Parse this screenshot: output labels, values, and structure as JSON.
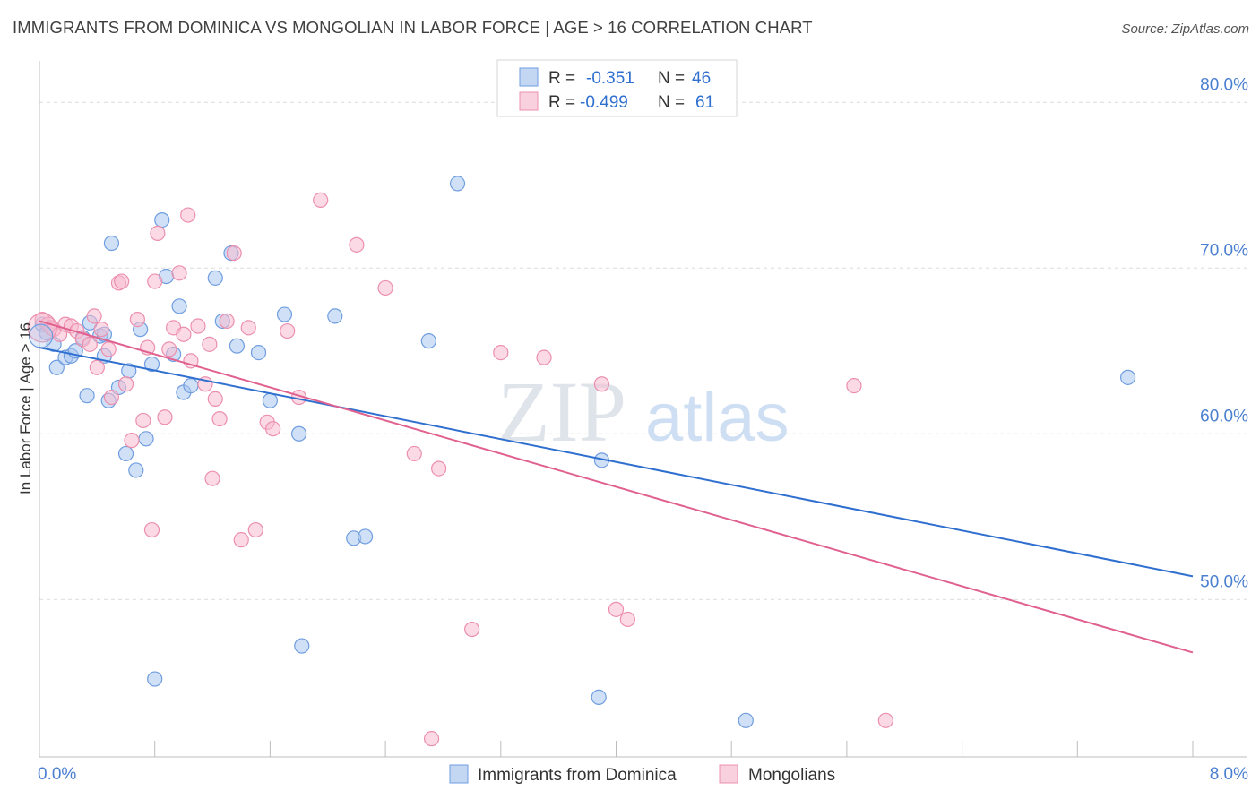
{
  "header": {
    "title": "IMMIGRANTS FROM DOMINICA VS MONGOLIAN IN LABOR FORCE | AGE > 16 CORRELATION CHART",
    "source": "Source: ZipAtlas.com"
  },
  "watermark": {
    "zip": "ZIP",
    "atlas": "atlas"
  },
  "colors": {
    "blue_fill": "#a9c6ef",
    "blue_stroke": "#6f9de0",
    "blue_line": "#2f6fcf",
    "pink_fill": "#f7bcd0",
    "pink_stroke": "#ec8fae",
    "pink_line": "#e0618f",
    "tick": "#4a7fd0"
  },
  "legend": {
    "rows": [
      {
        "r_label": "R =",
        "r_value": "-0.351",
        "n_label": "N =",
        "n_value": "46"
      },
      {
        "r_label": "R =",
        "r_value": "-0.499",
        "n_label": "N =",
        "n_value": "61"
      }
    ]
  },
  "chart_data": {
    "type": "scatter",
    "title": "IMMIGRANTS FROM DOMINICA VS MONGOLIAN IN LABOR FORCE | AGE > 16 CORRELATION CHART",
    "xlabel": "",
    "ylabel": "In Labor Force | Age > 16",
    "xlim": [
      0,
      8
    ],
    "ylim": [
      40.5,
      82.5
    ],
    "x_tick_labels": [
      {
        "value": 0,
        "label": "0.0%"
      },
      {
        "value": 8,
        "label": "8.0%"
      }
    ],
    "y_tick_labels": [
      {
        "value": 50,
        "label": "50.0%"
      },
      {
        "value": 60,
        "label": "60.0%"
      },
      {
        "value": 70,
        "label": "70.0%"
      },
      {
        "value": 80,
        "label": "80.0%"
      }
    ],
    "grid": true,
    "legend_position": "top-center",
    "series": [
      {
        "name": "Immigrants from Dominica",
        "color": "#6f9de0",
        "trend": {
          "x": [
            0,
            8
          ],
          "y": [
            65.2,
            51.4
          ]
        },
        "points": [
          [
            0.02,
            66.6
          ],
          [
            0.05,
            66.1
          ],
          [
            0.1,
            65.4
          ],
          [
            0.12,
            64.0
          ],
          [
            0.18,
            64.6
          ],
          [
            0.22,
            64.7
          ],
          [
            0.25,
            65.0
          ],
          [
            0.3,
            65.8
          ],
          [
            0.35,
            66.7
          ],
          [
            0.33,
            62.3
          ],
          [
            0.42,
            65.9
          ],
          [
            0.45,
            66.0
          ],
          [
            0.45,
            64.7
          ],
          [
            0.48,
            62.0
          ],
          [
            0.5,
            71.5
          ],
          [
            0.55,
            62.8
          ],
          [
            0.6,
            58.8
          ],
          [
            0.62,
            63.8
          ],
          [
            0.67,
            57.8
          ],
          [
            0.7,
            66.3
          ],
          [
            0.74,
            59.7
          ],
          [
            0.78,
            64.2
          ],
          [
            0.85,
            72.9
          ],
          [
            0.88,
            69.5
          ],
          [
            0.93,
            64.8
          ],
          [
            0.97,
            67.7
          ],
          [
            1.0,
            62.5
          ],
          [
            1.05,
            62.9
          ],
          [
            1.22,
            69.4
          ],
          [
            1.27,
            66.8
          ],
          [
            1.33,
            70.9
          ],
          [
            1.37,
            65.3
          ],
          [
            1.52,
            64.9
          ],
          [
            1.6,
            62.0
          ],
          [
            1.7,
            67.2
          ],
          [
            1.8,
            60.0
          ],
          [
            2.05,
            67.1
          ],
          [
            2.18,
            53.7
          ],
          [
            2.26,
            53.8
          ],
          [
            2.7,
            65.6
          ],
          [
            2.9,
            75.1
          ],
          [
            3.9,
            58.4
          ],
          [
            7.55,
            63.4
          ],
          [
            0.8,
            45.2
          ],
          [
            1.82,
            47.2
          ],
          [
            3.88,
            44.1
          ],
          [
            4.9,
            42.7
          ]
        ]
      },
      {
        "name": "Mongolians",
        "color": "#ec8fae",
        "trend": {
          "x": [
            0,
            8
          ],
          "y": [
            66.8,
            46.8
          ]
        },
        "points": [
          [
            0.02,
            66.9
          ],
          [
            0.06,
            66.6
          ],
          [
            0.08,
            66.4
          ],
          [
            0.1,
            66.3
          ],
          [
            0.14,
            66.0
          ],
          [
            0.18,
            66.6
          ],
          [
            0.22,
            66.5
          ],
          [
            0.26,
            66.2
          ],
          [
            0.3,
            65.7
          ],
          [
            0.35,
            65.4
          ],
          [
            0.38,
            67.1
          ],
          [
            0.4,
            64.0
          ],
          [
            0.43,
            66.3
          ],
          [
            0.48,
            65.1
          ],
          [
            0.5,
            62.2
          ],
          [
            0.55,
            69.1
          ],
          [
            0.57,
            69.2
          ],
          [
            0.6,
            63.0
          ],
          [
            0.64,
            59.6
          ],
          [
            0.68,
            66.9
          ],
          [
            0.72,
            60.8
          ],
          [
            0.75,
            65.2
          ],
          [
            0.78,
            54.2
          ],
          [
            0.8,
            69.2
          ],
          [
            0.82,
            72.1
          ],
          [
            0.87,
            61.0
          ],
          [
            0.9,
            65.1
          ],
          [
            0.93,
            66.4
          ],
          [
            0.97,
            69.7
          ],
          [
            1.0,
            66.0
          ],
          [
            1.03,
            73.2
          ],
          [
            1.05,
            64.4
          ],
          [
            1.1,
            66.5
          ],
          [
            1.15,
            63.0
          ],
          [
            1.18,
            65.4
          ],
          [
            1.2,
            57.3
          ],
          [
            1.22,
            62.1
          ],
          [
            1.25,
            60.9
          ],
          [
            1.3,
            66.8
          ],
          [
            1.35,
            70.9
          ],
          [
            1.4,
            53.6
          ],
          [
            1.45,
            66.4
          ],
          [
            1.5,
            54.2
          ],
          [
            1.58,
            60.7
          ],
          [
            1.62,
            60.3
          ],
          [
            1.72,
            66.2
          ],
          [
            1.8,
            62.2
          ],
          [
            1.95,
            74.1
          ],
          [
            2.2,
            71.4
          ],
          [
            2.4,
            68.8
          ],
          [
            2.6,
            58.8
          ],
          [
            2.77,
            57.9
          ],
          [
            3.0,
            48.2
          ],
          [
            3.2,
            64.9
          ],
          [
            3.5,
            64.6
          ],
          [
            3.9,
            63.0
          ],
          [
            4.0,
            49.4
          ],
          [
            4.08,
            48.8
          ],
          [
            5.65,
            62.9
          ],
          [
            2.72,
            41.6
          ],
          [
            5.87,
            42.7
          ]
        ]
      }
    ]
  },
  "bottom_legend": {
    "items": [
      {
        "label": "Immigrants from Dominica"
      },
      {
        "label": "Mongolians"
      }
    ]
  }
}
